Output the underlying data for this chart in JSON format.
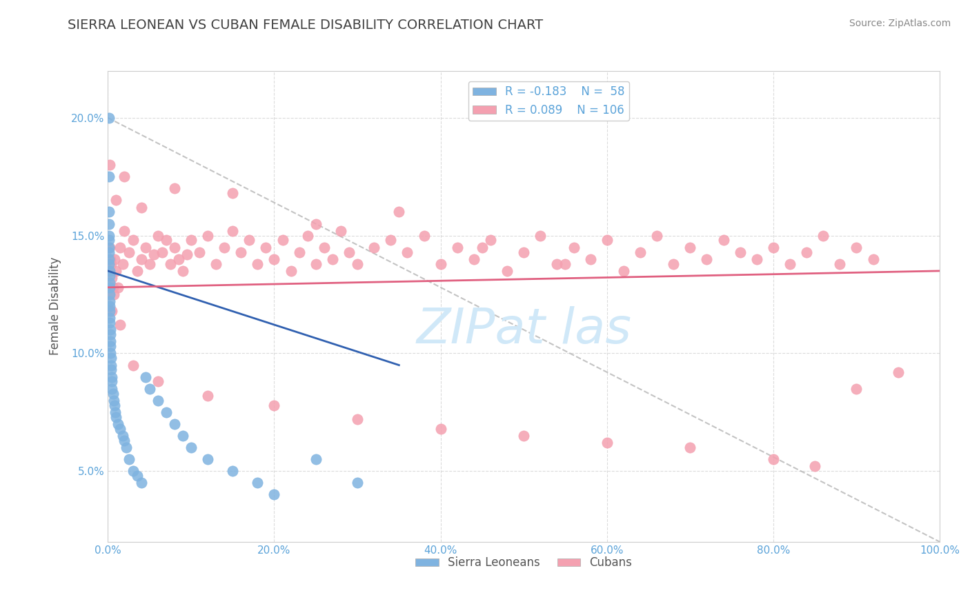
{
  "title": "SIERRA LEONEAN VS CUBAN FEMALE DISABILITY CORRELATION CHART",
  "source": "Source: ZipAtlas.com",
  "xlabel_bottom": "",
  "ylabel": "Female Disability",
  "xlim": [
    0,
    1.0
  ],
  "ylim": [
    0.02,
    0.22
  ],
  "xticks": [
    0.0,
    0.2,
    0.4,
    0.6,
    0.8,
    1.0
  ],
  "xtick_labels": [
    "0.0%",
    "20.0%",
    "40.0%",
    "60.0%",
    "80.0%",
    "100.0%"
  ],
  "yticks": [
    0.05,
    0.1,
    0.15,
    0.2
  ],
  "ytick_labels": [
    "5.0%",
    "10.0%",
    "15.0%",
    "20.0%"
  ],
  "legend1_r": "R = -0.183",
  "legend1_n": "N =  58",
  "legend2_r": "R = 0.089",
  "legend2_n": "N = 106",
  "blue_color": "#7fb3e0",
  "pink_color": "#f4a0b0",
  "blue_line_color": "#3060b0",
  "pink_line_color": "#e06080",
  "title_color": "#404040",
  "axis_color": "#5ba3d9",
  "legend_text_color": "#5ba3d9",
  "grid_color": "#cccccc",
  "watermark_color": "#d0e8f8",
  "sierra_x": [
    0.001,
    0.001,
    0.001,
    0.001,
    0.001,
    0.001,
    0.001,
    0.001,
    0.001,
    0.001,
    0.002,
    0.002,
    0.002,
    0.002,
    0.002,
    0.002,
    0.002,
    0.002,
    0.002,
    0.002,
    0.003,
    0.003,
    0.003,
    0.003,
    0.003,
    0.004,
    0.004,
    0.004,
    0.005,
    0.005,
    0.005,
    0.006,
    0.007,
    0.008,
    0.009,
    0.01,
    0.012,
    0.015,
    0.018,
    0.02,
    0.022,
    0.025,
    0.03,
    0.035,
    0.04,
    0.045,
    0.05,
    0.06,
    0.07,
    0.08,
    0.09,
    0.1,
    0.12,
    0.15,
    0.18,
    0.2,
    0.25,
    0.3
  ],
  "sierra_y": [
    0.2,
    0.175,
    0.16,
    0.155,
    0.15,
    0.148,
    0.145,
    0.143,
    0.14,
    0.138,
    0.135,
    0.133,
    0.13,
    0.128,
    0.125,
    0.122,
    0.12,
    0.118,
    0.115,
    0.113,
    0.11,
    0.108,
    0.105,
    0.103,
    0.1,
    0.098,
    0.095,
    0.093,
    0.09,
    0.088,
    0.085,
    0.083,
    0.08,
    0.078,
    0.075,
    0.073,
    0.07,
    0.068,
    0.065,
    0.063,
    0.06,
    0.055,
    0.05,
    0.048,
    0.045,
    0.09,
    0.085,
    0.08,
    0.075,
    0.07,
    0.065,
    0.06,
    0.055,
    0.05,
    0.045,
    0.04,
    0.055,
    0.045
  ],
  "cuban_x": [
    0.001,
    0.002,
    0.003,
    0.004,
    0.005,
    0.006,
    0.007,
    0.008,
    0.01,
    0.012,
    0.015,
    0.018,
    0.02,
    0.025,
    0.03,
    0.035,
    0.04,
    0.045,
    0.05,
    0.055,
    0.06,
    0.065,
    0.07,
    0.075,
    0.08,
    0.085,
    0.09,
    0.095,
    0.1,
    0.11,
    0.12,
    0.13,
    0.14,
    0.15,
    0.16,
    0.17,
    0.18,
    0.19,
    0.2,
    0.21,
    0.22,
    0.23,
    0.24,
    0.25,
    0.26,
    0.27,
    0.28,
    0.29,
    0.3,
    0.32,
    0.34,
    0.36,
    0.38,
    0.4,
    0.42,
    0.44,
    0.46,
    0.48,
    0.5,
    0.52,
    0.54,
    0.56,
    0.58,
    0.6,
    0.62,
    0.64,
    0.66,
    0.68,
    0.7,
    0.72,
    0.74,
    0.76,
    0.78,
    0.8,
    0.82,
    0.84,
    0.86,
    0.88,
    0.9,
    0.92,
    0.002,
    0.01,
    0.02,
    0.04,
    0.08,
    0.15,
    0.25,
    0.35,
    0.45,
    0.55,
    0.001,
    0.005,
    0.015,
    0.03,
    0.06,
    0.12,
    0.2,
    0.3,
    0.4,
    0.5,
    0.6,
    0.7,
    0.8,
    0.85,
    0.9,
    0.95
  ],
  "cuban_y": [
    0.135,
    0.145,
    0.14,
    0.138,
    0.132,
    0.128,
    0.125,
    0.14,
    0.135,
    0.128,
    0.145,
    0.138,
    0.152,
    0.143,
    0.148,
    0.135,
    0.14,
    0.145,
    0.138,
    0.142,
    0.15,
    0.143,
    0.148,
    0.138,
    0.145,
    0.14,
    0.135,
    0.142,
    0.148,
    0.143,
    0.15,
    0.138,
    0.145,
    0.152,
    0.143,
    0.148,
    0.138,
    0.145,
    0.14,
    0.148,
    0.135,
    0.143,
    0.15,
    0.138,
    0.145,
    0.14,
    0.152,
    0.143,
    0.138,
    0.145,
    0.148,
    0.143,
    0.15,
    0.138,
    0.145,
    0.14,
    0.148,
    0.135,
    0.143,
    0.15,
    0.138,
    0.145,
    0.14,
    0.148,
    0.135,
    0.143,
    0.15,
    0.138,
    0.145,
    0.14,
    0.148,
    0.143,
    0.14,
    0.145,
    0.138,
    0.143,
    0.15,
    0.138,
    0.145,
    0.14,
    0.18,
    0.165,
    0.175,
    0.162,
    0.17,
    0.168,
    0.155,
    0.16,
    0.145,
    0.138,
    0.125,
    0.118,
    0.112,
    0.095,
    0.088,
    0.082,
    0.078,
    0.072,
    0.068,
    0.065,
    0.062,
    0.06,
    0.055,
    0.052,
    0.085,
    0.092
  ]
}
